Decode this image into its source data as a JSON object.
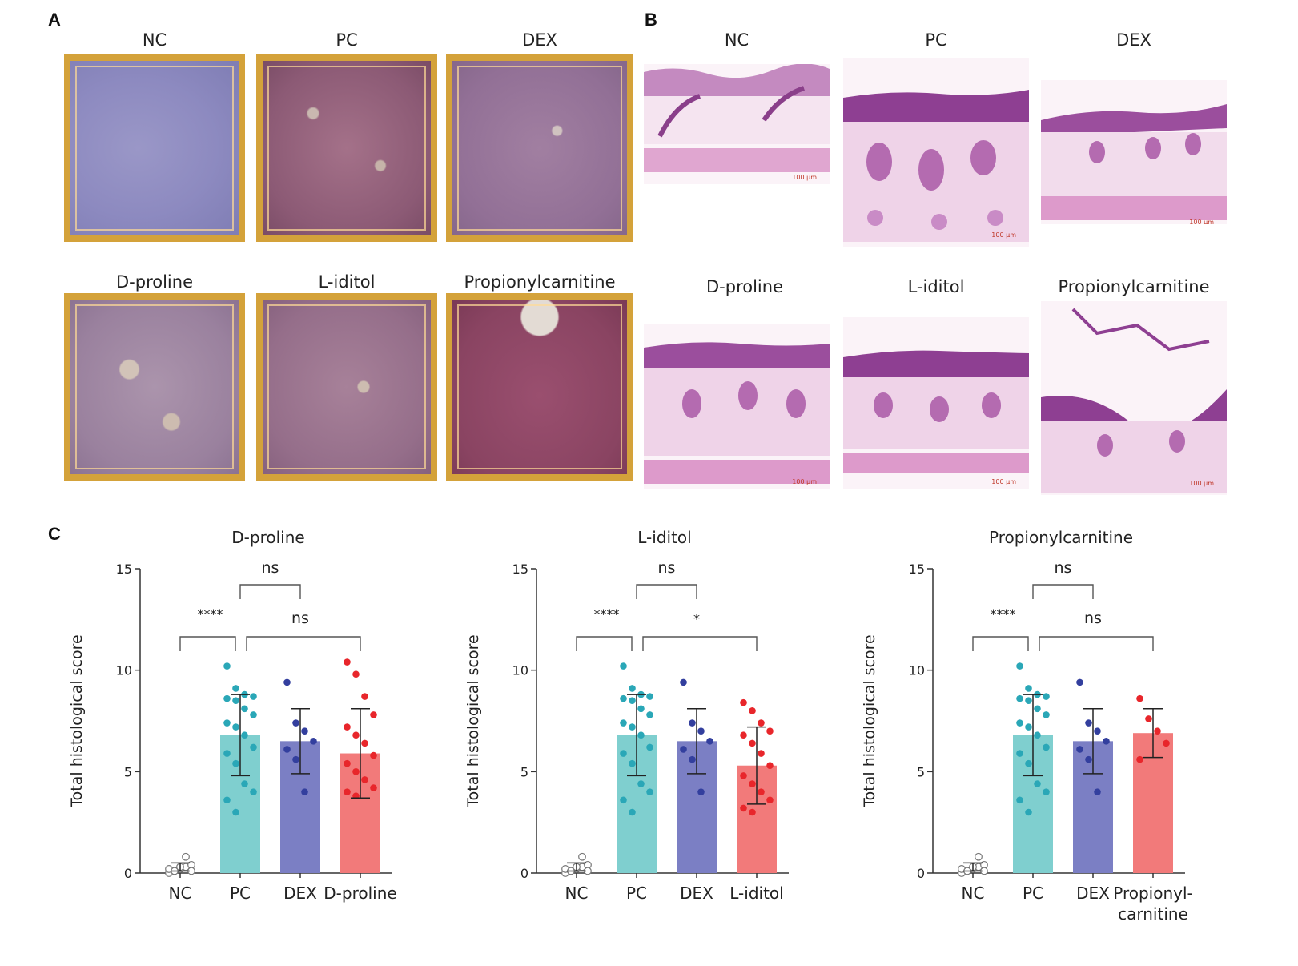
{
  "panels": {
    "A": {
      "letter": "A",
      "labels": [
        "NC",
        "PC",
        "DEX",
        "D-proline",
        "L-iditol",
        "Propionylcarnitine"
      ]
    },
    "B": {
      "letter": "B",
      "labels": [
        "NC",
        "PC",
        "DEX",
        "D-proline",
        "L-iditol",
        "Propionylcarnitine"
      ],
      "scale_text": "100 μm"
    },
    "C": {
      "letter": "C"
    }
  },
  "colors": {
    "NC": "#ffffff",
    "PC": "#7fcfcf",
    "DEX": "#7b7fc4",
    "treatment": "#f27a7a",
    "PC_dot": "#2aa7b7",
    "DEX_dot": "#333f9e",
    "treatment_dot": "#e8262b"
  },
  "chart_data": [
    {
      "type": "bar",
      "title": "D-proline",
      "ylabel": "Total histological score",
      "ylim": [
        0,
        15
      ],
      "yticks": [
        0,
        5,
        10,
        15
      ],
      "categories": [
        "NC",
        "PC",
        "DEX",
        "D-proline"
      ],
      "values": [
        0.3,
        6.8,
        6.5,
        5.9
      ],
      "sd": [
        0.2,
        2.0,
        1.6,
        2.2
      ],
      "points": [
        [
          0,
          0.1,
          0.2,
          0.3,
          0.4,
          0.2,
          0.1,
          0.3,
          0.8,
          0.1
        ],
        [
          10.2,
          9.1,
          8.8,
          8.7,
          8.6,
          8.5,
          8.1,
          7.8,
          7.4,
          7.2,
          6.8,
          6.2,
          5.9,
          5.4,
          4.4,
          4.0,
          3.6,
          3.0
        ],
        [
          9.4,
          7.4,
          7.0,
          6.5,
          6.1,
          5.6,
          4.0
        ],
        [
          10.4,
          9.8,
          8.7,
          7.8,
          7.2,
          6.8,
          6.4,
          5.8,
          5.4,
          5.0,
          4.6,
          4.2,
          4.0,
          3.8
        ]
      ],
      "comparisons": [
        {
          "from": 0,
          "to": 1,
          "label": "****"
        },
        {
          "from": 1,
          "to": 2,
          "label": "ns"
        },
        {
          "from": 1,
          "to": 3,
          "label": "ns"
        }
      ],
      "xlabels": [
        [
          "NC"
        ],
        [
          "PC"
        ],
        [
          "DEX"
        ],
        [
          "D-proline"
        ]
      ]
    },
    {
      "type": "bar",
      "title": "L-iditol",
      "ylabel": "Total histological score",
      "ylim": [
        0,
        15
      ],
      "yticks": [
        0,
        5,
        10,
        15
      ],
      "categories": [
        "NC",
        "PC",
        "DEX",
        "L-iditol"
      ],
      "values": [
        0.3,
        6.8,
        6.5,
        5.3
      ],
      "sd": [
        0.2,
        2.0,
        1.6,
        1.9
      ],
      "points": [
        [
          0,
          0.1,
          0.2,
          0.3,
          0.4,
          0.2,
          0.1,
          0.3,
          0.8,
          0.1
        ],
        [
          10.2,
          9.1,
          8.8,
          8.7,
          8.6,
          8.5,
          8.1,
          7.8,
          7.4,
          7.2,
          6.8,
          6.2,
          5.9,
          5.4,
          4.4,
          4.0,
          3.6,
          3.0
        ],
        [
          9.4,
          7.4,
          7.0,
          6.5,
          6.1,
          5.6,
          4.0
        ],
        [
          8.4,
          8.0,
          7.4,
          7.0,
          6.8,
          6.4,
          5.9,
          5.3,
          4.8,
          4.4,
          4.0,
          3.6,
          3.2,
          3.0
        ]
      ],
      "comparisons": [
        {
          "from": 0,
          "to": 1,
          "label": "****"
        },
        {
          "from": 1,
          "to": 2,
          "label": "ns"
        },
        {
          "from": 1,
          "to": 3,
          "label": "*"
        }
      ],
      "xlabels": [
        [
          "NC"
        ],
        [
          "PC"
        ],
        [
          "DEX"
        ],
        [
          "L-iditol"
        ]
      ]
    },
    {
      "type": "bar",
      "title": "Propionylcarnitine",
      "ylabel": "Total histological score",
      "ylim": [
        0,
        15
      ],
      "yticks": [
        0,
        5,
        10,
        15
      ],
      "categories": [
        "NC",
        "PC",
        "DEX",
        "Propionylcarnitine"
      ],
      "values": [
        0.3,
        6.8,
        6.5,
        6.9
      ],
      "sd": [
        0.2,
        2.0,
        1.6,
        1.2
      ],
      "points": [
        [
          0,
          0.1,
          0.2,
          0.3,
          0.4,
          0.2,
          0.1,
          0.3,
          0.8,
          0.1
        ],
        [
          10.2,
          9.1,
          8.8,
          8.7,
          8.6,
          8.5,
          8.1,
          7.8,
          7.4,
          7.2,
          6.8,
          6.2,
          5.9,
          5.4,
          4.4,
          4.0,
          3.6,
          3.0
        ],
        [
          9.4,
          7.4,
          7.0,
          6.5,
          6.1,
          5.6,
          4.0
        ],
        [
          8.6,
          7.6,
          7.0,
          6.4,
          5.6
        ]
      ],
      "comparisons": [
        {
          "from": 0,
          "to": 1,
          "label": "****"
        },
        {
          "from": 1,
          "to": 2,
          "label": "ns"
        },
        {
          "from": 1,
          "to": 3,
          "label": "ns"
        }
      ],
      "xlabels": [
        [
          "NC"
        ],
        [
          "PC"
        ],
        [
          "DEX"
        ],
        [
          "Propionyl-",
          "carnitine"
        ]
      ]
    }
  ]
}
